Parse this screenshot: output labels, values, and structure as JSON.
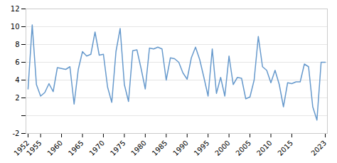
{
  "chart_data": {
    "type": "line",
    "x": [
      1952,
      1953,
      1954,
      1955,
      1956,
      1957,
      1958,
      1959,
      1960,
      1961,
      1962,
      1963,
      1964,
      1965,
      1966,
      1967,
      1968,
      1969,
      1970,
      1971,
      1972,
      1973,
      1974,
      1975,
      1976,
      1977,
      1978,
      1979,
      1980,
      1981,
      1982,
      1983,
      1984,
      1985,
      1986,
      1987,
      1988,
      1989,
      1990,
      1991,
      1992,
      1993,
      1994,
      1995,
      1996,
      1997,
      1998,
      1999,
      2000,
      2001,
      2002,
      2003,
      2004,
      2005,
      2006,
      2007,
      2008,
      2009,
      2010,
      2011,
      2012,
      2013,
      2014,
      2015,
      2016,
      2017,
      2018,
      2019,
      2020,
      2021,
      2022,
      2023
    ],
    "values": [
      3.0,
      10.2,
      3.5,
      2.2,
      2.6,
      3.6,
      2.7,
      5.4,
      5.3,
      5.2,
      5.5,
      1.3,
      5.2,
      7.2,
      6.7,
      6.9,
      9.4,
      6.8,
      6.9,
      3.2,
      1.5,
      7.2,
      9.8,
      3.5,
      1.6,
      7.3,
      7.4,
      5.3,
      3.0,
      7.6,
      7.5,
      7.7,
      7.5,
      4.0,
      6.5,
      6.4,
      6.0,
      4.8,
      4.1,
      6.5,
      7.7,
      6.3,
      4.3,
      2.2,
      7.5,
      2.5,
      4.3,
      2.2,
      6.7,
      3.5,
      4.3,
      4.2,
      1.9,
      2.1,
      4.0,
      8.9,
      5.5,
      5.1,
      3.7,
      5.1,
      3.5,
      1.0,
      3.7,
      3.6,
      3.8,
      3.8,
      5.8,
      5.5,
      1.0,
      -0.5,
      6.0,
      6.0
    ],
    "color": "#6699cc",
    "xlim": [
      1951.5,
      2023.5
    ],
    "xticks": [
      1952,
      1955,
      1960,
      1965,
      1970,
      1975,
      1980,
      1985,
      1990,
      1995,
      2000,
      2005,
      2010,
      2015,
      2023
    ],
    "ylim": [
      -2,
      12
    ],
    "yticks": [
      -2,
      {
        "value": 0,
        "label": ""
      },
      2,
      4,
      6,
      8,
      10,
      12
    ],
    "grid": true
  }
}
